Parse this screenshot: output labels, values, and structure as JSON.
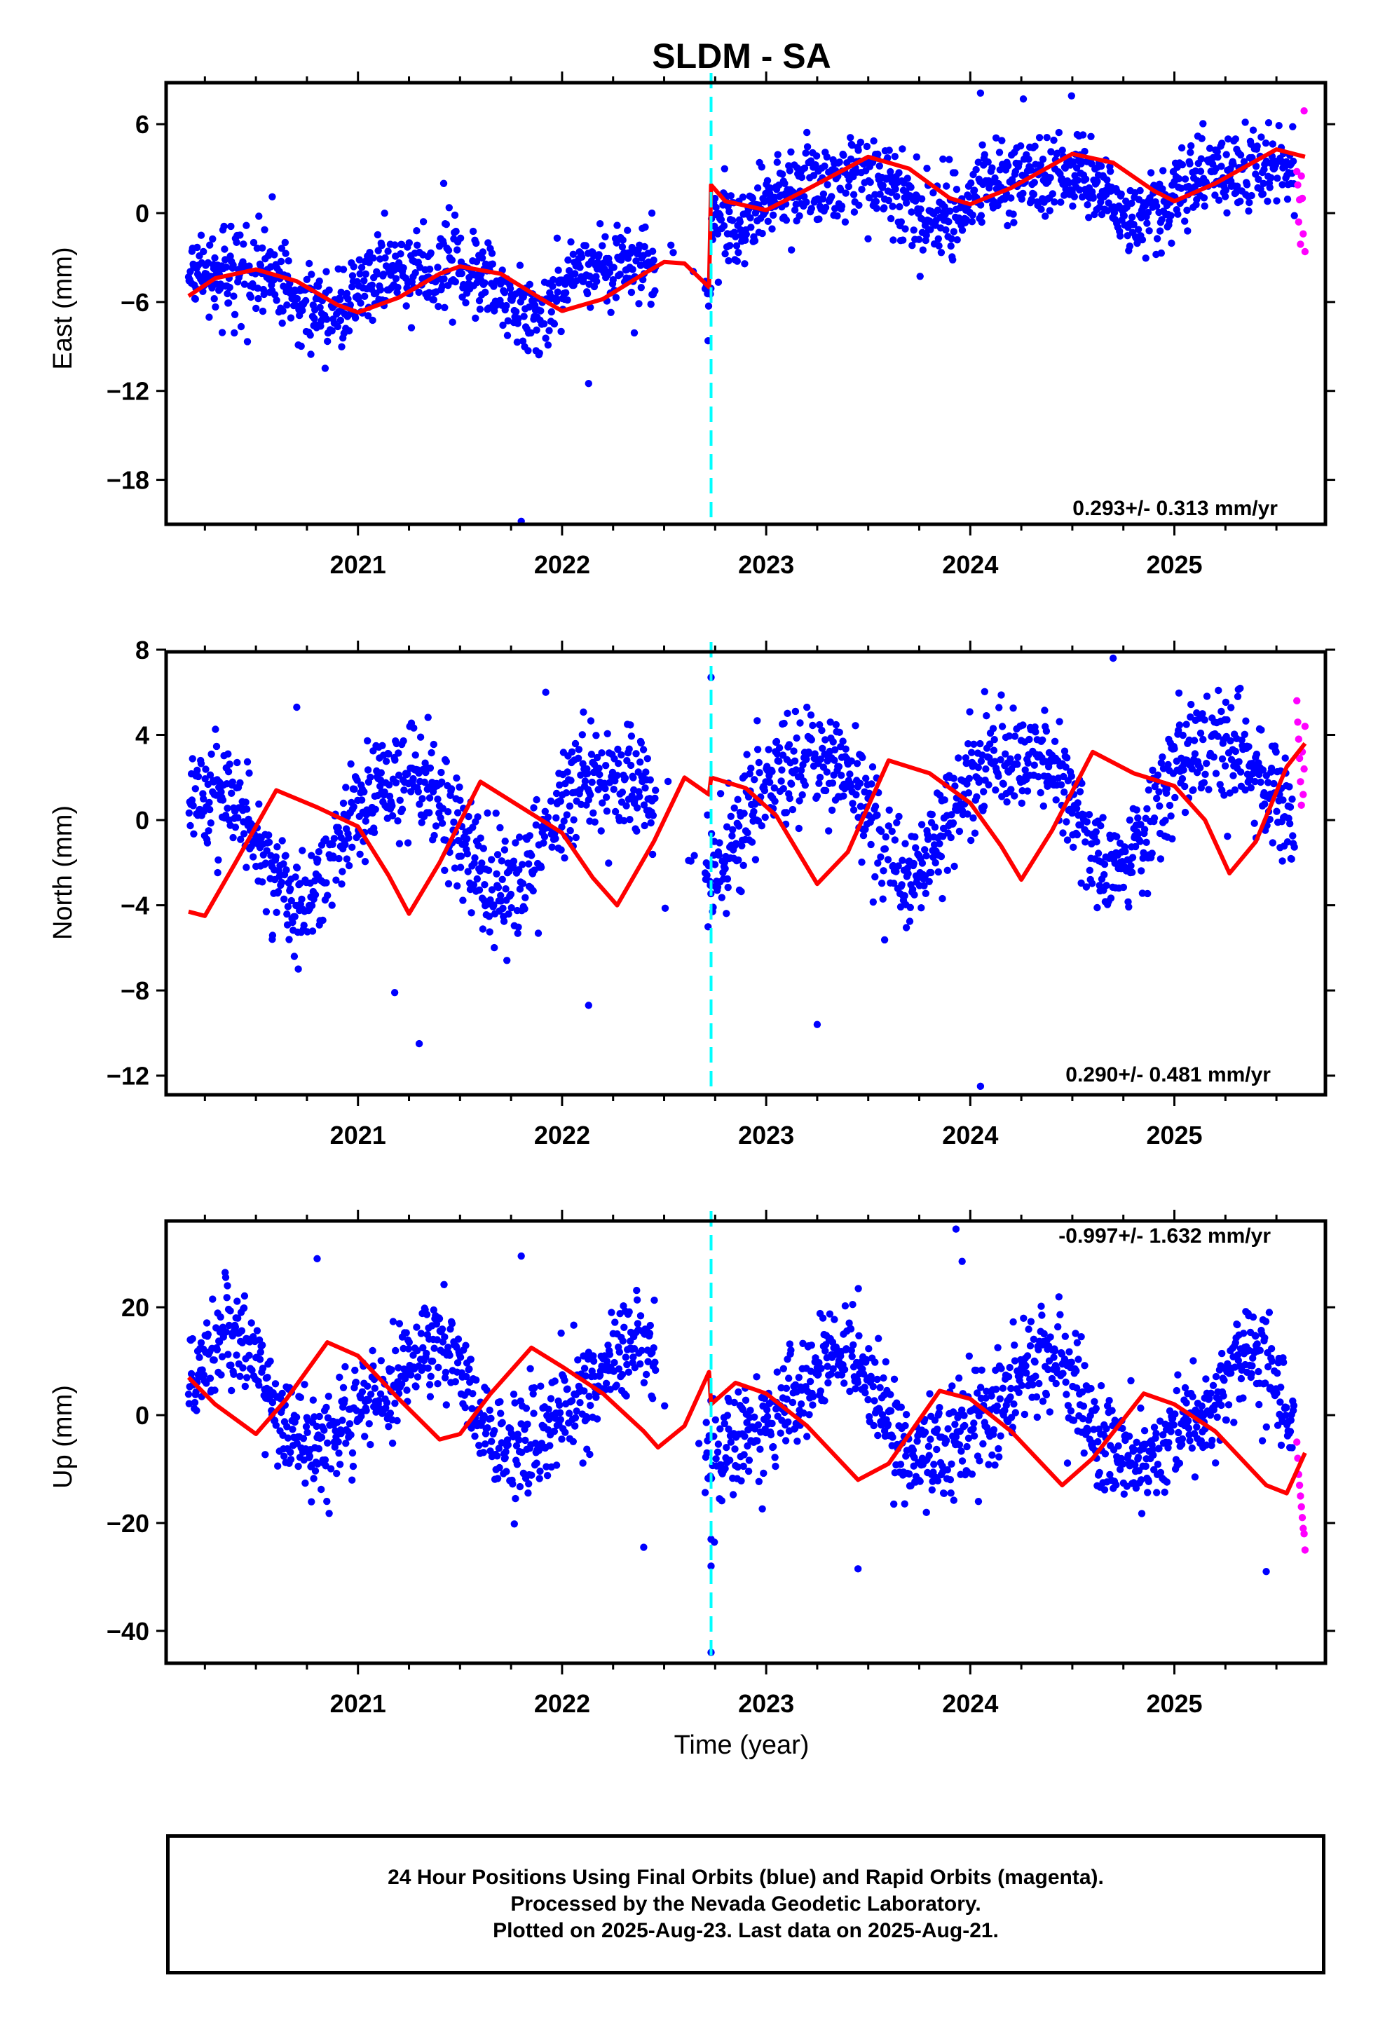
{
  "title": "SLDM - SA",
  "xlabel": "Time (year)",
  "caption": [
    "24 Hour Positions Using Final Orbits (blue) and Rapid Orbits (magenta).",
    "Processed by the Nevada Geodetic Laboratory.",
    "Plotted on 2025-Aug-23. Last data on 2025-Aug-21."
  ],
  "colors": {
    "final_orbits": "#0000ff",
    "rapid_orbits": "#ff00ff",
    "model_fit": "#ff0000",
    "equipment_change": "#00ffff"
  },
  "chart_data": [
    {
      "type": "scatter",
      "component": "East",
      "ylabel": "East (mm)",
      "xlim": [
        2020.06,
        2025.74
      ],
      "ylim": [
        -21,
        8.8
      ],
      "yticks": [
        6,
        0,
        -6,
        -12,
        -18
      ],
      "xticks": [
        2021,
        2022,
        2023,
        2024,
        2025
      ],
      "rate": "0.293+/- 0.313 mm/yr",
      "rate_position": "bottom-right",
      "step_epoch": 2022.73,
      "final_orbits_span": [
        2020.17,
        2025.59
      ],
      "rapid_orbits_span": [
        2025.6,
        2025.64
      ],
      "fit_curve": {
        "x": [
          2020.17,
          2020.3,
          2020.5,
          2020.7,
          2020.9,
          2021.0,
          2021.2,
          2021.4,
          2021.5,
          2021.7,
          2021.9,
          2022.0,
          2022.2,
          2022.4,
          2022.5,
          2022.6,
          2022.72,
          2022.73,
          2022.8,
          2023.0,
          2023.2,
          2023.5,
          2023.7,
          2023.9,
          2024.0,
          2024.2,
          2024.5,
          2024.7,
          2024.9,
          2025.0,
          2025.2,
          2025.5,
          2025.64
        ],
        "y": [
          -5.6,
          -4.4,
          -3.8,
          -4.6,
          -6.2,
          -6.7,
          -5.7,
          -4.1,
          -3.6,
          -4.1,
          -5.8,
          -6.6,
          -5.8,
          -4.1,
          -3.3,
          -3.4,
          -5.0,
          1.9,
          0.8,
          0.2,
          1.6,
          3.8,
          3.0,
          1.0,
          0.6,
          1.7,
          4.0,
          3.4,
          1.5,
          0.8,
          2.0,
          4.3,
          3.8
        ]
      },
      "scatter_model": {
        "offset": -5.1,
        "rate": 0.293,
        "step": 5.5,
        "annual_sin": 1.2,
        "annual_cos": -0.9,
        "semiannual_sin": 0.4,
        "semiannual_cos": 0.3,
        "noise": 1.4
      },
      "notable_points": [
        {
          "x": 2020.58,
          "y": 1.1
        },
        {
          "x": 2021.42,
          "y": 2.0
        },
        {
          "x": 2021.8,
          "y": -20.8
        },
        {
          "x": 2022.13,
          "y": -11.5
        },
        {
          "x": 2022.44,
          "y": 0.0
        },
        {
          "x": 2024.05,
          "y": 8.1
        },
        {
          "x": 2024.26,
          "y": 7.7
        }
      ],
      "rapid_values": [
        2.8,
        1.9,
        -0.6,
        0.9,
        -2.1,
        2.5,
        1.0,
        -1.4,
        6.9,
        -2.6
      ]
    },
    {
      "type": "scatter",
      "component": "North",
      "ylabel": "North (mm)",
      "xlim": [
        2020.06,
        2025.74
      ],
      "ylim": [
        -12.9,
        7.9
      ],
      "yticks": [
        8,
        4,
        0,
        -4,
        -8,
        -12
      ],
      "xticks": [
        2021,
        2022,
        2023,
        2024,
        2025
      ],
      "rate": "0.290+/- 0.481 mm/yr",
      "rate_position": "bottom-right",
      "step_epoch": 2022.73,
      "final_orbits_span": [
        2020.17,
        2025.59
      ],
      "rapid_orbits_span": [
        2025.6,
        2025.64
      ],
      "fit_curve": {
        "x": [
          2020.17,
          2020.25,
          2020.4,
          2020.6,
          2020.8,
          2021.0,
          2021.15,
          2021.25,
          2021.4,
          2021.6,
          2021.8,
          2022.0,
          2022.15,
          2022.27,
          2022.45,
          2022.6,
          2022.72,
          2022.73,
          2022.9,
          2023.05,
          2023.25,
          2023.4,
          2023.6,
          2023.8,
          2024.0,
          2024.15,
          2024.25,
          2024.4,
          2024.6,
          2024.8,
          2025.0,
          2025.15,
          2025.27,
          2025.4,
          2025.55,
          2025.64
        ],
        "y": [
          -4.3,
          -4.5,
          -2.0,
          1.4,
          0.6,
          -0.3,
          -2.6,
          -4.4,
          -2.0,
          1.8,
          0.6,
          -0.6,
          -2.7,
          -4.0,
          -1.0,
          2.0,
          1.2,
          2.0,
          1.5,
          0.2,
          -3.0,
          -1.5,
          2.8,
          2.2,
          0.8,
          -1.2,
          -2.8,
          -0.5,
          3.2,
          2.2,
          1.6,
          0.0,
          -2.5,
          -1.0,
          2.5,
          3.6
        ]
      },
      "scatter_model": {
        "offset": -0.7,
        "rate": 0.29,
        "step": 0.4,
        "annual_sin": 2.6,
        "annual_cos": 0.6,
        "semiannual_sin": -0.3,
        "semiannual_cos": 0.4,
        "noise": 1.3
      },
      "notable_points": [
        {
          "x": 2020.7,
          "y": 5.3
        },
        {
          "x": 2020.58,
          "y": -5.6
        },
        {
          "x": 2021.3,
          "y": -10.5
        },
        {
          "x": 2021.18,
          "y": -8.1
        },
        {
          "x": 2021.92,
          "y": 6.0
        },
        {
          "x": 2022.13,
          "y": -8.7
        },
        {
          "x": 2022.73,
          "y": 6.7
        },
        {
          "x": 2022.62,
          "y": -1.9
        },
        {
          "x": 2023.25,
          "y": -9.6
        },
        {
          "x": 2024.05,
          "y": -12.5
        },
        {
          "x": 2024.7,
          "y": 7.6
        }
      ],
      "rapid_values": [
        5.6,
        4.6,
        3.8,
        2.9,
        1.8,
        0.7,
        3.2,
        1.2,
        2.4,
        4.4
      ]
    },
    {
      "type": "scatter",
      "component": "Up",
      "ylabel": "Up (mm)",
      "xlabel": "Time (year)",
      "xlim": [
        2020.06,
        2025.74
      ],
      "ylim": [
        -46,
        36
      ],
      "yticks": [
        20,
        0,
        -20,
        -40
      ],
      "xticks": [
        2021,
        2022,
        2023,
        2024,
        2025
      ],
      "rate": "-0.997+/- 1.632 mm/yr",
      "rate_position": "top-right",
      "step_epoch": 2022.73,
      "final_orbits_span": [
        2020.17,
        2025.59
      ],
      "rapid_orbits_span": [
        2025.6,
        2025.64
      ],
      "fit_curve": {
        "x": [
          2020.17,
          2020.3,
          2020.5,
          2020.65,
          2020.85,
          2021.0,
          2021.2,
          2021.4,
          2021.5,
          2021.65,
          2021.85,
          2022.0,
          2022.2,
          2022.4,
          2022.47,
          2022.6,
          2022.72,
          2022.73,
          2022.85,
          2023.0,
          2023.2,
          2023.45,
          2023.6,
          2023.85,
          2024.0,
          2024.2,
          2024.45,
          2024.6,
          2024.85,
          2025.0,
          2025.2,
          2025.45,
          2025.55,
          2025.64
        ],
        "y": [
          7,
          2,
          -3.5,
          3,
          13.5,
          11,
          3,
          -4.5,
          -3.5,
          4,
          12.5,
          9,
          4,
          -3,
          -6,
          -2,
          8,
          2,
          6,
          4,
          -2,
          -12,
          -9,
          4.5,
          3,
          -3,
          -13,
          -8,
          4,
          2,
          -3,
          -13,
          -14.5,
          -7
        ]
      },
      "scatter_model": {
        "offset": 4.5,
        "rate": -0.997,
        "step": 0.5,
        "annual_sin": 8.0,
        "annual_cos": -4.5,
        "semiannual_sin": -2.0,
        "semiannual_cos": 1.5,
        "noise": 4.8
      },
      "notable_points": [
        {
          "x": 2020.8,
          "y": 29
        },
        {
          "x": 2021.8,
          "y": 29.5
        },
        {
          "x": 2022.4,
          "y": -24.5
        },
        {
          "x": 2022.73,
          "y": -23
        },
        {
          "x": 2022.73,
          "y": -28
        },
        {
          "x": 2022.73,
          "y": -44
        },
        {
          "x": 2023.45,
          "y": -28.5
        },
        {
          "x": 2023.93,
          "y": 34.5
        },
        {
          "x": 2023.96,
          "y": 28.5
        },
        {
          "x": 2024.04,
          "y": -16
        },
        {
          "x": 2025.45,
          "y": -29
        }
      ],
      "rapid_values": [
        -5,
        -8,
        -11,
        -13,
        -15,
        -17,
        -19,
        -21,
        -22,
        -25
      ]
    }
  ]
}
